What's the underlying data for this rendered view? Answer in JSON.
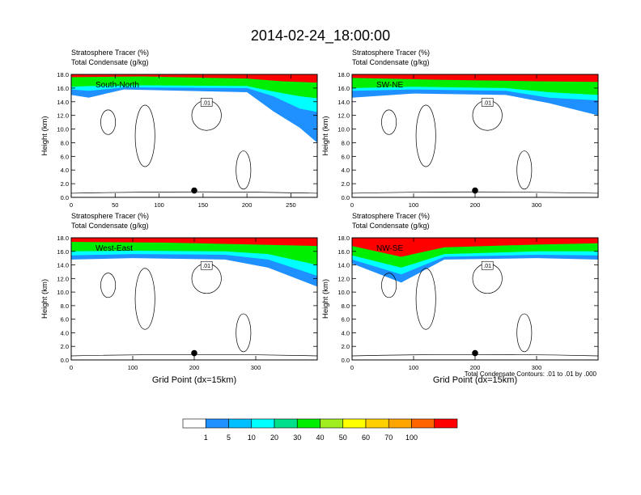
{
  "figure": {
    "title": "2014-02-24_18:00:00",
    "footnote": "Total Condensate Contours: .01 to .01 by .000"
  },
  "colorbar": {
    "colors": [
      "#ffffff",
      "#1e90ff",
      "#00bfff",
      "#00ffff",
      "#00e08a",
      "#00ee00",
      "#a0ee20",
      "#ffff00",
      "#ffd000",
      "#ffa500",
      "#ff6400",
      "#ff0000"
    ],
    "labels": [
      "1",
      "5",
      "10",
      "20",
      "30",
      "40",
      "50",
      "60",
      "70",
      "100"
    ]
  },
  "chart_data": [
    {
      "type": "heatmap",
      "section": "South-North",
      "title_lines": [
        "Stratosphere Tracer   (%)",
        "Total Condensate   (g/kg)"
      ],
      "ylabel": "Height (km)",
      "xlabel": "",
      "xlim": [
        0,
        280
      ],
      "ylim": [
        0,
        18
      ],
      "xticks": [
        "0",
        "50",
        "100",
        "150",
        "200",
        "250"
      ],
      "yticks": [
        "0.0",
        "2.0",
        "4.0",
        "6.0",
        "8.0",
        "10.0",
        "12.0",
        "14.0",
        "16.0",
        "18.0"
      ],
      "contour_label": ".01",
      "marker": {
        "x": 140,
        "y": 1.0
      },
      "tracer_layers": [
        {
          "pct": 100,
          "segments": [
            [
              0,
              17.6
            ],
            [
              80,
              17.7
            ],
            [
              200,
              17.4
            ],
            [
              240,
              17.0
            ],
            [
              280,
              16.8
            ]
          ]
        },
        {
          "pct": 30,
          "segments": [
            [
              0,
              16.2
            ],
            [
              20,
              16.3
            ],
            [
              80,
              16.4
            ],
            [
              200,
              16.3
            ],
            [
              230,
              15.5
            ],
            [
              260,
              14.8
            ],
            [
              280,
              14.5
            ]
          ]
        },
        {
          "pct": 10,
          "segments": [
            [
              0,
              15.8
            ],
            [
              20,
              15.6
            ],
            [
              60,
              16.1
            ],
            [
              200,
              16.0
            ],
            [
              230,
              14.8
            ],
            [
              260,
              13.0
            ],
            [
              280,
              12.5
            ]
          ]
        },
        {
          "pct": 1,
          "segments": [
            [
              0,
              15.0
            ],
            [
              20,
              14.6
            ],
            [
              60,
              15.8
            ],
            [
              200,
              15.4
            ],
            [
              230,
              12.6
            ],
            [
              260,
              10.2
            ],
            [
              280,
              8.0
            ]
          ]
        }
      ]
    },
    {
      "type": "heatmap",
      "section": "SW-NE",
      "title_lines": [
        "Stratosphere Tracer   (%)",
        "Total Condensate   (g/kg)"
      ],
      "ylabel": "Height (km)",
      "xlabel": "",
      "xlim": [
        0,
        400
      ],
      "ylim": [
        0,
        18
      ],
      "xticks": [
        "0",
        "100",
        "200",
        "300"
      ],
      "yticks": [
        "0.0",
        "2.0",
        "4.0",
        "6.0",
        "8.0",
        "10.0",
        "12.0",
        "14.0",
        "16.0",
        "18.0"
      ],
      "contour_label": ".01",
      "marker": {
        "x": 200,
        "y": 1.0
      },
      "tracer_layers": [
        {
          "pct": 100,
          "segments": [
            [
              0,
              17.5
            ],
            [
              150,
              17.2
            ],
            [
              300,
              17.0
            ],
            [
              400,
              16.9
            ]
          ]
        },
        {
          "pct": 30,
          "segments": [
            [
              0,
              16.0
            ],
            [
              100,
              16.2
            ],
            [
              250,
              16.0
            ],
            [
              320,
              15.4
            ],
            [
              400,
              15.0
            ]
          ]
        },
        {
          "pct": 10,
          "segments": [
            [
              0,
              15.6
            ],
            [
              100,
              15.8
            ],
            [
              250,
              15.6
            ],
            [
              320,
              14.6
            ],
            [
              400,
              14.2
            ]
          ]
        },
        {
          "pct": 1,
          "segments": [
            [
              0,
              14.6
            ],
            [
              100,
              15.2
            ],
            [
              250,
              15.0
            ],
            [
              320,
              13.8
            ],
            [
              400,
              12.0
            ]
          ]
        }
      ]
    },
    {
      "type": "heatmap",
      "section": "West-East",
      "title_lines": [
        "Stratosphere Tracer   (%)",
        "Total Condensate   (g/kg)"
      ],
      "ylabel": "Height (km)",
      "xlabel": "Grid Point (dx=15km)",
      "xlim": [
        0,
        400
      ],
      "ylim": [
        0,
        18
      ],
      "xticks": [
        "0",
        "100",
        "200",
        "300"
      ],
      "yticks": [
        "0.0",
        "2.0",
        "4.0",
        "6.0",
        "8.0",
        "10.0",
        "12.0",
        "14.0",
        "16.0",
        "18.0"
      ],
      "contour_label": ".01",
      "marker": {
        "x": 200,
        "y": 1.0
      },
      "tracer_layers": [
        {
          "pct": 100,
          "segments": [
            [
              0,
              17.4
            ],
            [
              150,
              17.3
            ],
            [
              300,
              17.0
            ],
            [
              400,
              16.8
            ]
          ]
        },
        {
          "pct": 30,
          "segments": [
            [
              0,
              16.0
            ],
            [
              100,
              16.1
            ],
            [
              250,
              16.0
            ],
            [
              320,
              15.6
            ],
            [
              400,
              14.0
            ]
          ]
        },
        {
          "pct": 10,
          "segments": [
            [
              0,
              15.4
            ],
            [
              100,
              15.6
            ],
            [
              250,
              15.5
            ],
            [
              320,
              14.8
            ],
            [
              400,
              12.4
            ]
          ]
        },
        {
          "pct": 1,
          "segments": [
            [
              0,
              14.8
            ],
            [
              100,
              15.0
            ],
            [
              250,
              14.8
            ],
            [
              320,
              13.6
            ],
            [
              400,
              10.8
            ]
          ]
        }
      ]
    },
    {
      "type": "heatmap",
      "section": "NW-SE",
      "title_lines": [
        "Stratosphere Tracer   (%)",
        "Total Condensate   (g/kg)"
      ],
      "ylabel": "Height (km)",
      "xlabel": "Grid Point (dx=15km)",
      "xlim": [
        0,
        400
      ],
      "ylim": [
        0,
        18
      ],
      "xticks": [
        "0",
        "100",
        "200",
        "300"
      ],
      "yticks": [
        "0.0",
        "2.0",
        "4.0",
        "6.0",
        "8.0",
        "10.0",
        "12.0",
        "14.0",
        "16.0",
        "18.0"
      ],
      "contour_label": ".01",
      "marker": {
        "x": 200,
        "y": 1.0
      },
      "tracer_layers": [
        {
          "pct": 100,
          "segments": [
            [
              0,
              16.8
            ],
            [
              80,
              15.2
            ],
            [
              150,
              16.6
            ],
            [
              300,
              17.0
            ],
            [
              400,
              17.2
            ]
          ]
        },
        {
          "pct": 30,
          "segments": [
            [
              0,
              15.4
            ],
            [
              80,
              13.6
            ],
            [
              150,
              15.6
            ],
            [
              300,
              16.0
            ],
            [
              400,
              16.0
            ]
          ]
        },
        {
          "pct": 10,
          "segments": [
            [
              0,
              14.8
            ],
            [
              80,
              12.6
            ],
            [
              150,
              15.2
            ],
            [
              300,
              15.5
            ],
            [
              400,
              15.4
            ]
          ]
        },
        {
          "pct": 1,
          "segments": [
            [
              0,
              14.2
            ],
            [
              80,
              11.4
            ],
            [
              150,
              14.8
            ],
            [
              300,
              15.0
            ],
            [
              400,
              14.8
            ]
          ]
        }
      ]
    }
  ]
}
